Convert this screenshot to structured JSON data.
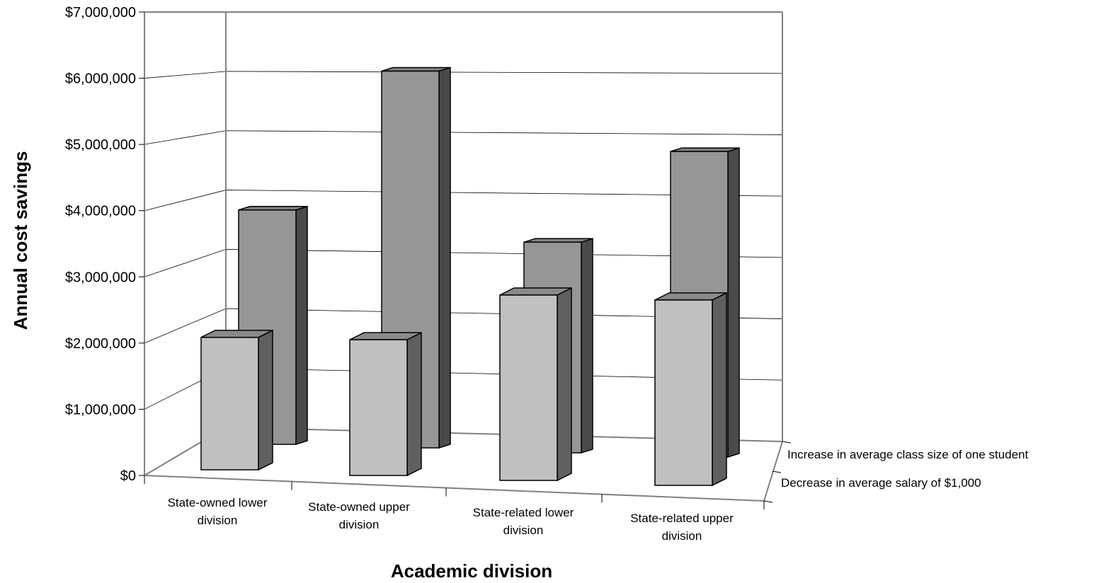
{
  "chart_data": {
    "type": "bar",
    "title": "",
    "xlabel": "Academic division",
    "ylabel": "Annual cost savings",
    "ylim": [
      0,
      7000000
    ],
    "y_ticks": [
      0,
      1000000,
      2000000,
      3000000,
      4000000,
      5000000,
      6000000,
      7000000
    ],
    "y_tick_labels": [
      "$0",
      "$1,000,000",
      "$2,000,000",
      "$3,000,000",
      "$4,000,000",
      "$5,000,000",
      "$6,000,000",
      "$7,000,000"
    ],
    "categories": [
      [
        "State-owned lower",
        "division"
      ],
      [
        "State-owned upper",
        "division"
      ],
      [
        "State-related lower",
        "division"
      ],
      [
        "State-related upper",
        "division"
      ]
    ],
    "series": [
      {
        "name": "Decrease in average salary of $1,000",
        "values": [
          2000000,
          2050000,
          2800000,
          2800000
        ],
        "color": "#c0c0c0",
        "side_color": "#606060"
      },
      {
        "name": "Increase in average class size of one student",
        "values": [
          3950000,
          6350000,
          3550000,
          5150000
        ],
        "color": "#969696",
        "side_color": "#4a4a4a"
      }
    ],
    "grid": true,
    "legend": "depth-axis-right"
  }
}
